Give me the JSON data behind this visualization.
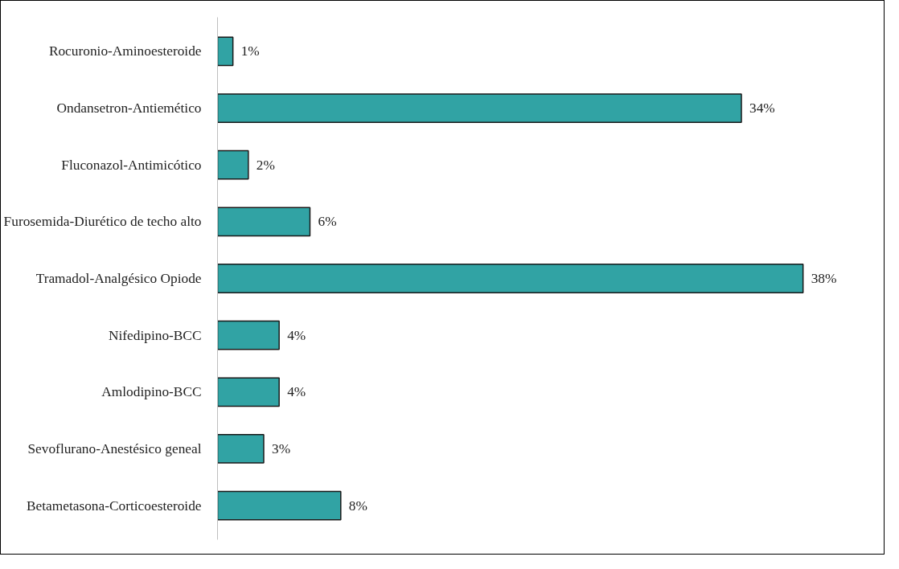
{
  "chart_data": {
    "type": "bar",
    "orientation": "horizontal",
    "categories": [
      "Rocuronio-Aminoesteroide",
      "Ondansetron-Antiemético",
      "Fluconazol-Antimicótico",
      "Furosemida-Diurético de techo alto",
      "Tramadol-Analgésico Opiode",
      "Nifedipino-BCC",
      "Amlodipino-BCC",
      "Sevoflurano-Anestésico geneal",
      "Betametasona-Corticoesteroide"
    ],
    "values": [
      1,
      34,
      2,
      6,
      38,
      4,
      4,
      3,
      8
    ],
    "value_labels": [
      "1%",
      "34%",
      "2%",
      "6%",
      "38%",
      "4%",
      "4%",
      "3%",
      "8%"
    ],
    "color": "#31a3a4",
    "grid": false
  }
}
